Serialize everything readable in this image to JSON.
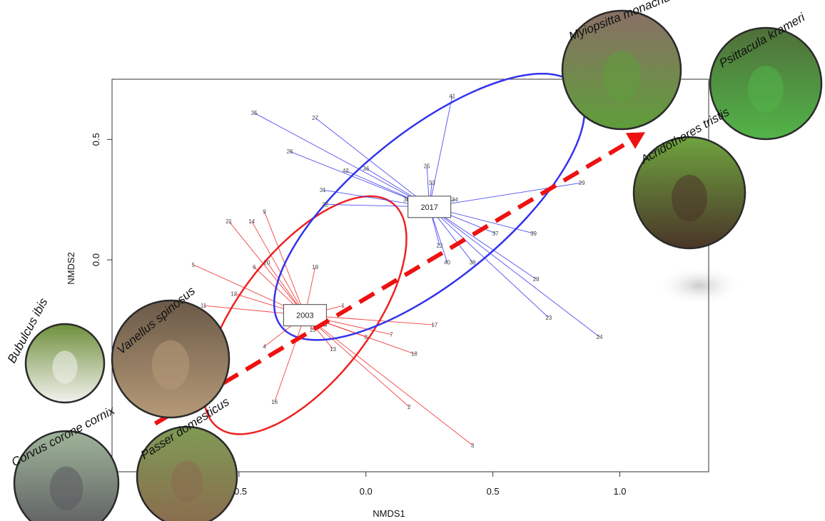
{
  "chart_data": {
    "type": "scatter",
    "xlabel": "NMDS1",
    "ylabel": "NMDS2",
    "xlim": [
      -1.0,
      1.35
    ],
    "ylim": [
      -0.88,
      0.75
    ],
    "x_ticks": [
      -0.5,
      0.0,
      0.5,
      1.0
    ],
    "x_tick_labels": [
      "-0.5",
      "0.0",
      "0.5",
      "1.0"
    ],
    "y_ticks": [
      0.0,
      0.5
    ],
    "y_tick_labels": [
      "0.0",
      "0.5"
    ],
    "groups": [
      {
        "name": "2003",
        "color": "#ee2222",
        "centroid": [
          -0.24,
          -0.23
        ],
        "ellipse": {
          "center": [
            -0.24,
            -0.23
          ],
          "rx": 0.56,
          "ry": 0.27,
          "angle_deg": -52
        },
        "sites": [
          {
            "label": "21",
            "x": -0.54,
            "y": 0.16
          },
          {
            "label": "14",
            "x": -0.45,
            "y": 0.16
          },
          {
            "label": "9",
            "x": -0.4,
            "y": 0.2
          },
          {
            "label": "5",
            "x": -0.68,
            "y": -0.02
          },
          {
            "label": "6",
            "x": -0.44,
            "y": -0.03
          },
          {
            "label": "20",
            "x": -0.39,
            "y": -0.01
          },
          {
            "label": "19",
            "x": -0.2,
            "y": -0.03
          },
          {
            "label": "12",
            "x": -0.52,
            "y": -0.14
          },
          {
            "label": "11",
            "x": -0.64,
            "y": -0.19
          },
          {
            "label": "1",
            "x": -0.09,
            "y": -0.19
          },
          {
            "label": "17",
            "x": 0.27,
            "y": -0.27
          },
          {
            "label": "7",
            "x": 0.1,
            "y": -0.31
          },
          {
            "label": "8",
            "x": 0.0,
            "y": -0.32
          },
          {
            "label": "15",
            "x": -0.21,
            "y": -0.29
          },
          {
            "label": "13",
            "x": -0.13,
            "y": -0.37
          },
          {
            "label": "18",
            "x": 0.19,
            "y": -0.39
          },
          {
            "label": "4",
            "x": -0.4,
            "y": -0.36
          },
          {
            "label": "16",
            "x": -0.36,
            "y": -0.59
          },
          {
            "label": "2",
            "x": 0.17,
            "y": -0.61
          },
          {
            "label": "3",
            "x": 0.42,
            "y": -0.77
          }
        ]
      },
      {
        "name": "2017",
        "color": "#3333ee",
        "centroid": [
          0.25,
          0.22
        ],
        "ellipse": {
          "center": [
            0.25,
            0.22
          ],
          "rx": 0.75,
          "ry": 0.31,
          "angle_deg": -39
        },
        "sites": [
          {
            "label": "41",
            "x": 0.34,
            "y": 0.68
          },
          {
            "label": "35",
            "x": -0.44,
            "y": 0.61
          },
          {
            "label": "27",
            "x": -0.2,
            "y": 0.59
          },
          {
            "label": "26",
            "x": -0.3,
            "y": 0.45
          },
          {
            "label": "25",
            "x": 0.24,
            "y": 0.39
          },
          {
            "label": "36",
            "x": 0.0,
            "y": 0.38
          },
          {
            "label": "42",
            "x": -0.08,
            "y": 0.37
          },
          {
            "label": "33",
            "x": 0.26,
            "y": 0.32
          },
          {
            "label": "31",
            "x": -0.17,
            "y": 0.29
          },
          {
            "label": "32",
            "x": -0.16,
            "y": 0.23
          },
          {
            "label": "30",
            "x": 0.16,
            "y": 0.25
          },
          {
            "label": "34",
            "x": 0.35,
            "y": 0.25
          },
          {
            "label": "29",
            "x": 0.85,
            "y": 0.32
          },
          {
            "label": "37",
            "x": 0.51,
            "y": 0.11
          },
          {
            "label": "39",
            "x": 0.66,
            "y": 0.11
          },
          {
            "label": "22",
            "x": 0.29,
            "y": 0.06
          },
          {
            "label": "40",
            "x": 0.32,
            "y": -0.01
          },
          {
            "label": "38",
            "x": 0.42,
            "y": -0.01
          },
          {
            "label": "28",
            "x": 0.67,
            "y": -0.08
          },
          {
            "label": "23",
            "x": 0.72,
            "y": -0.24
          },
          {
            "label": "24",
            "x": 0.92,
            "y": -0.32
          }
        ]
      }
    ],
    "arrow": {
      "from": [
        -0.83,
        -0.68
      ],
      "to": [
        1.1,
        0.53
      ],
      "color": "#ee1111"
    },
    "species": [
      {
        "name": "Bubulcus ibis",
        "colors": [
          "#6f8f3c",
          "#f2f2ee"
        ]
      },
      {
        "name": "Vanellus spinosus",
        "colors": [
          "#6b5a48",
          "#b69a78"
        ]
      },
      {
        "name": "Corvus corone cornix",
        "colors": [
          "#9fb59a",
          "#5a5a5e"
        ]
      },
      {
        "name": "Passer domesticus",
        "colors": [
          "#7f9b55",
          "#8a6b4e"
        ]
      },
      {
        "name": "Myiopsitta monachus",
        "colors": [
          "#8a6f66",
          "#5f9e3a"
        ]
      },
      {
        "name": "Psittacula krameri",
        "colors": [
          "#4f6f3a",
          "#52b548"
        ]
      },
      {
        "name": "Acridotheres tristis",
        "colors": [
          "#6fa33f",
          "#4a3528"
        ]
      }
    ]
  }
}
